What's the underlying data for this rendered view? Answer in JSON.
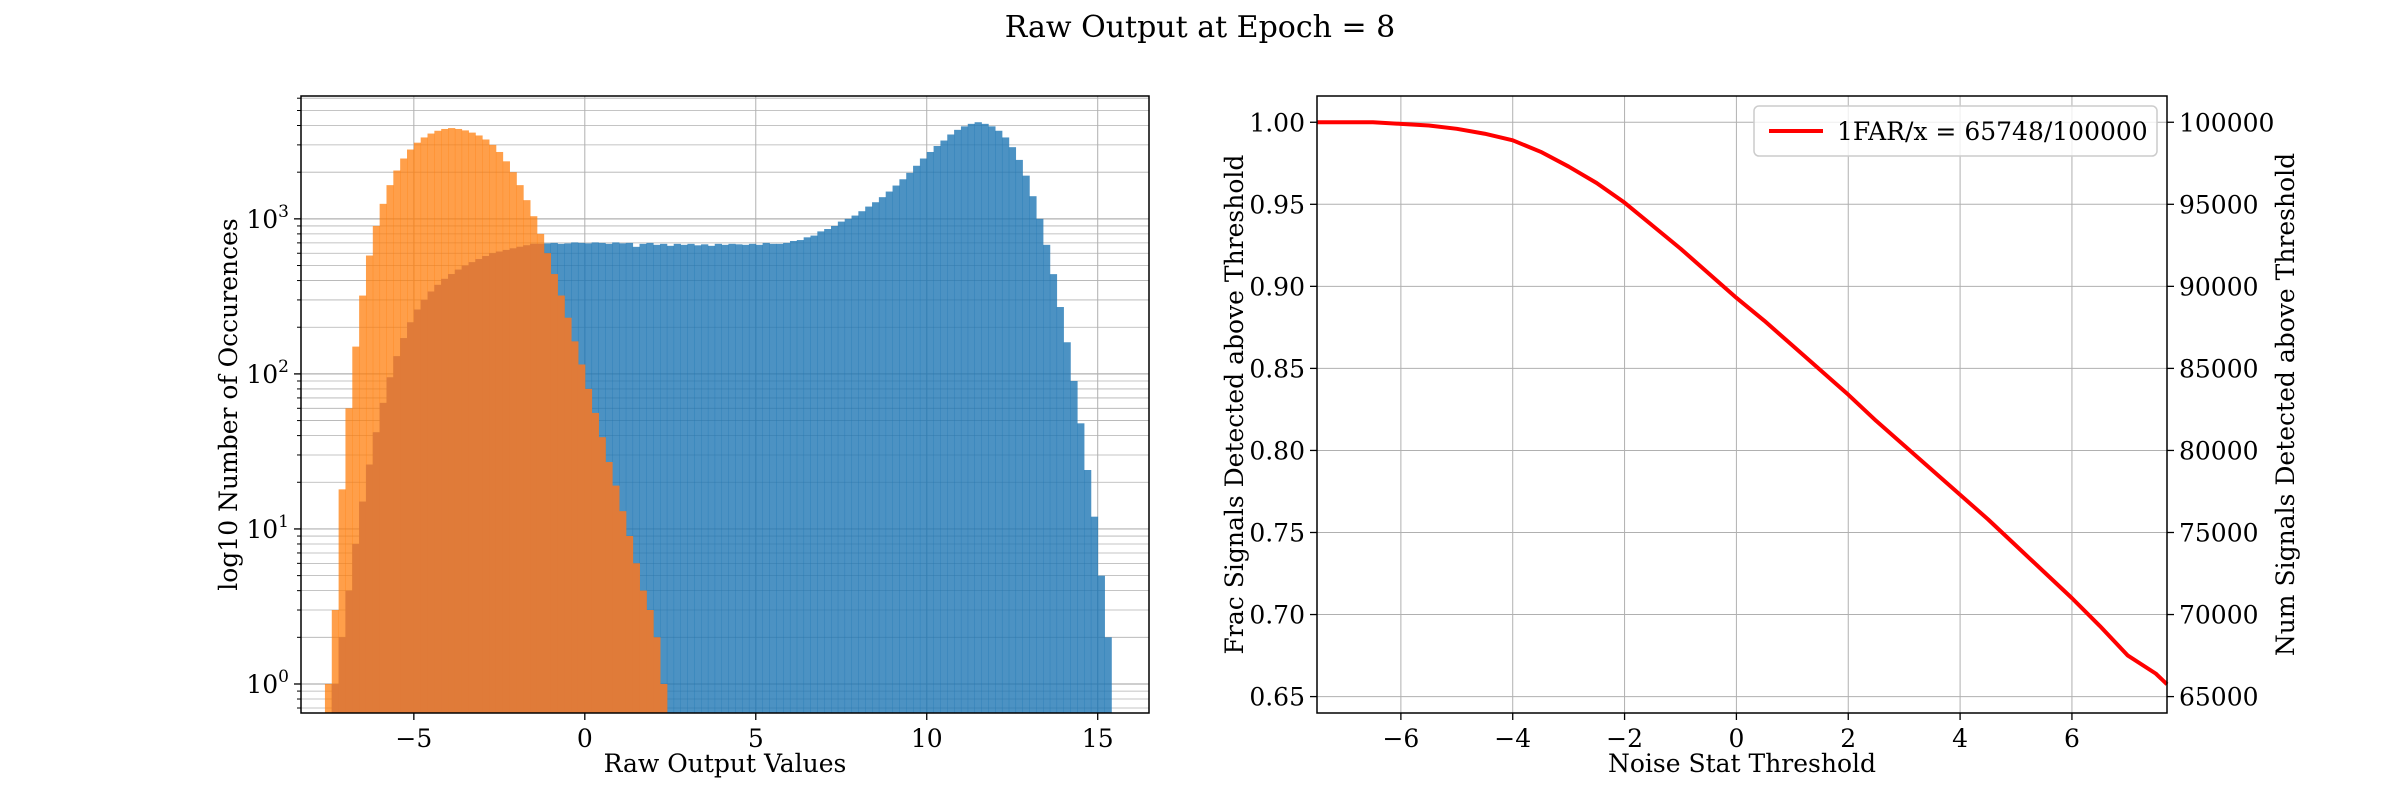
{
  "figure": {
    "suptitle": "Raw Output at Epoch = 8"
  },
  "chart_data": [
    {
      "type": "histogram",
      "yscale": "log",
      "xlabel": "Raw Output Values",
      "ylabel": "log10 Number of Occurences",
      "xlim": [
        -8.3,
        16.5
      ],
      "ylim": [
        0.65,
        6200
      ],
      "grid": true,
      "x_ticks": [
        -5,
        0,
        5,
        10,
        15
      ],
      "x_tick_labels": [
        "−5",
        "0",
        "5",
        "10",
        "15"
      ],
      "y_ticks": [
        1,
        10,
        100,
        1000
      ],
      "y_tick_labels": [
        {
          "base": "10",
          "exp": "0"
        },
        {
          "base": "10",
          "exp": "1"
        },
        {
          "base": "10",
          "exp": "2"
        },
        {
          "base": "10",
          "exp": "3"
        }
      ],
      "colors": {
        "signal": "#1f77b4",
        "noise": "#ff7f0e",
        "overlap": "#e07b39"
      },
      "series": [
        {
          "key": "signal",
          "color": "#1f77b4",
          "alpha": 0.8,
          "bins": [
            [
              -7.3,
              1
            ],
            [
              -7.1,
              2
            ],
            [
              -6.9,
              4
            ],
            [
              -6.7,
              8
            ],
            [
              -6.5,
              15
            ],
            [
              -6.3,
              26
            ],
            [
              -6.1,
              42
            ],
            [
              -5.9,
              65
            ],
            [
              -5.7,
              95
            ],
            [
              -5.5,
              130
            ],
            [
              -5.3,
              170
            ],
            [
              -5.1,
              215
            ],
            [
              -4.9,
              260
            ],
            [
              -4.7,
              300
            ],
            [
              -4.5,
              340
            ],
            [
              -4.3,
              375
            ],
            [
              -4.1,
              410
            ],
            [
              -3.9,
              440
            ],
            [
              -3.7,
              470
            ],
            [
              -3.5,
              500
            ],
            [
              -3.3,
              525
            ],
            [
              -3.1,
              550
            ],
            [
              -2.9,
              575
            ],
            [
              -2.7,
              600
            ],
            [
              -2.5,
              615
            ],
            [
              -2.3,
              630
            ],
            [
              -2.1,
              645
            ],
            [
              -1.9,
              660
            ],
            [
              -1.7,
              675
            ],
            [
              -1.5,
              690
            ],
            [
              -1.3,
              690
            ],
            [
              -1.1,
              695
            ],
            [
              -0.9,
              700
            ],
            [
              -0.7,
              690
            ],
            [
              -0.5,
              695
            ],
            [
              -0.3,
              705
            ],
            [
              -0.1,
              700
            ],
            [
              0.1,
              695
            ],
            [
              0.3,
              705
            ],
            [
              0.5,
              700
            ],
            [
              0.7,
              690
            ],
            [
              0.9,
              705
            ],
            [
              1.1,
              695
            ],
            [
              1.3,
              700
            ],
            [
              1.5,
              660
            ],
            [
              1.7,
              690
            ],
            [
              1.9,
              700
            ],
            [
              2.1,
              680
            ],
            [
              2.3,
              690
            ],
            [
              2.5,
              670
            ],
            [
              2.7,
              690
            ],
            [
              2.9,
              680
            ],
            [
              3.1,
              690
            ],
            [
              3.3,
              675
            ],
            [
              3.5,
              685
            ],
            [
              3.7,
              670
            ],
            [
              3.9,
              690
            ],
            [
              4.1,
              680
            ],
            [
              4.3,
              690
            ],
            [
              4.5,
              685
            ],
            [
              4.7,
              680
            ],
            [
              4.9,
              690
            ],
            [
              5.1,
              680
            ],
            [
              5.3,
              700
            ],
            [
              5.5,
              690
            ],
            [
              5.7,
              690
            ],
            [
              5.9,
              700
            ],
            [
              6.1,
              720
            ],
            [
              6.3,
              730
            ],
            [
              6.5,
              760
            ],
            [
              6.7,
              780
            ],
            [
              6.9,
              830
            ],
            [
              7.1,
              860
            ],
            [
              7.3,
              900
            ],
            [
              7.5,
              960
            ],
            [
              7.7,
              1000
            ],
            [
              7.9,
              1050
            ],
            [
              8.1,
              1120
            ],
            [
              8.3,
              1200
            ],
            [
              8.5,
              1280
            ],
            [
              8.7,
              1380
            ],
            [
              8.9,
              1500
            ],
            [
              9.1,
              1640
            ],
            [
              9.3,
              1800
            ],
            [
              9.5,
              1980
            ],
            [
              9.7,
              2200
            ],
            [
              9.9,
              2450
            ],
            [
              10.1,
              2700
            ],
            [
              10.3,
              2950
            ],
            [
              10.5,
              3200
            ],
            [
              10.7,
              3500
            ],
            [
              10.9,
              3750
            ],
            [
              11.1,
              3950
            ],
            [
              11.3,
              4100
            ],
            [
              11.5,
              4200
            ],
            [
              11.7,
              4100
            ],
            [
              11.9,
              3950
            ],
            [
              12.1,
              3700
            ],
            [
              12.3,
              3350
            ],
            [
              12.5,
              2900
            ],
            [
              12.7,
              2400
            ],
            [
              12.9,
              1900
            ],
            [
              13.1,
              1400
            ],
            [
              13.3,
              1000
            ],
            [
              13.5,
              680
            ],
            [
              13.7,
              440
            ],
            [
              13.9,
              270
            ],
            [
              14.1,
              160
            ],
            [
              14.3,
              90
            ],
            [
              14.5,
              48
            ],
            [
              14.7,
              24
            ],
            [
              14.9,
              12
            ],
            [
              15.1,
              5
            ],
            [
              15.3,
              2
            ]
          ]
        },
        {
          "key": "noise",
          "color": "#ff7f0e",
          "alpha": 0.75,
          "bins": [
            [
              -7.5,
              1
            ],
            [
              -7.3,
              3
            ],
            [
              -7.1,
              18
            ],
            [
              -6.9,
              60
            ],
            [
              -6.7,
              150
            ],
            [
              -6.5,
              320
            ],
            [
              -6.3,
              580
            ],
            [
              -6.1,
              900
            ],
            [
              -5.9,
              1250
            ],
            [
              -5.7,
              1650
            ],
            [
              -5.5,
              2050
            ],
            [
              -5.3,
              2450
            ],
            [
              -5.1,
              2800
            ],
            [
              -4.9,
              3100
            ],
            [
              -4.7,
              3350
            ],
            [
              -4.5,
              3550
            ],
            [
              -4.3,
              3700
            ],
            [
              -4.1,
              3800
            ],
            [
              -3.9,
              3850
            ],
            [
              -3.7,
              3800
            ],
            [
              -3.5,
              3720
            ],
            [
              -3.3,
              3600
            ],
            [
              -3.1,
              3450
            ],
            [
              -2.9,
              3250
            ],
            [
              -2.7,
              3000
            ],
            [
              -2.5,
              2700
            ],
            [
              -2.3,
              2350
            ],
            [
              -2.1,
              2000
            ],
            [
              -1.9,
              1650
            ],
            [
              -1.7,
              1320
            ],
            [
              -1.5,
              1040
            ],
            [
              -1.3,
              800
            ],
            [
              -1.1,
              600
            ],
            [
              -0.9,
              440
            ],
            [
              -0.7,
              320
            ],
            [
              -0.5,
              230
            ],
            [
              -0.3,
              162
            ],
            [
              -0.1,
              115
            ],
            [
              0.1,
              80
            ],
            [
              0.3,
              56
            ],
            [
              0.5,
              39
            ],
            [
              0.7,
              27
            ],
            [
              0.9,
              19
            ],
            [
              1.1,
              13
            ],
            [
              1.3,
              9
            ],
            [
              1.5,
              6
            ],
            [
              1.7,
              4
            ],
            [
              1.9,
              3
            ],
            [
              2.1,
              2
            ],
            [
              2.3,
              1
            ]
          ]
        },
        {
          "key": "overlap",
          "color": "#e07b39",
          "alpha": 1,
          "bins": [
            [
              -7.3,
              1
            ],
            [
              -7.1,
              2
            ],
            [
              -6.9,
              4
            ],
            [
              -6.7,
              8
            ],
            [
              -6.5,
              15
            ],
            [
              -6.3,
              26
            ],
            [
              -6.1,
              42
            ],
            [
              -5.9,
              65
            ],
            [
              -5.7,
              95
            ],
            [
              -5.5,
              130
            ],
            [
              -5.3,
              170
            ],
            [
              -5.1,
              215
            ],
            [
              -4.9,
              260
            ],
            [
              -4.7,
              300
            ],
            [
              -4.5,
              340
            ],
            [
              -4.3,
              375
            ],
            [
              -4.1,
              410
            ],
            [
              -3.9,
              440
            ],
            [
              -3.7,
              470
            ],
            [
              -3.5,
              500
            ],
            [
              -3.3,
              525
            ],
            [
              -3.1,
              550
            ],
            [
              -2.9,
              575
            ],
            [
              -2.7,
              600
            ],
            [
              -2.5,
              615
            ],
            [
              -2.3,
              630
            ],
            [
              -2.1,
              645
            ],
            [
              -1.9,
              660
            ],
            [
              -1.7,
              675
            ],
            [
              -1.5,
              690
            ],
            [
              -1.3,
              690
            ],
            [
              -1.1,
              600
            ],
            [
              -0.9,
              440
            ],
            [
              -0.7,
              320
            ],
            [
              -0.5,
              230
            ],
            [
              -0.3,
              162
            ],
            [
              -0.1,
              115
            ],
            [
              0.1,
              80
            ],
            [
              0.3,
              56
            ],
            [
              0.5,
              39
            ],
            [
              0.7,
              27
            ],
            [
              0.9,
              19
            ],
            [
              1.1,
              13
            ],
            [
              1.3,
              9
            ],
            [
              1.5,
              6
            ],
            [
              1.7,
              4
            ],
            [
              1.9,
              3
            ],
            [
              2.1,
              2
            ],
            [
              2.3,
              1
            ]
          ]
        }
      ]
    },
    {
      "type": "line",
      "xlabel": "Noise Stat Threshold",
      "ylabel": "Frac Signals Detected above Threshold",
      "ylabel_right": "Num Signals Detected above Threshold",
      "xlim": [
        -7.5,
        7.7
      ],
      "ylim": [
        0.64,
        1.016
      ],
      "ylim_right": [
        64000,
        101600
      ],
      "grid": true,
      "x_ticks": [
        -6,
        -4,
        -2,
        0,
        2,
        4,
        6
      ],
      "x_tick_labels": [
        "−6",
        "−4",
        "−2",
        "0",
        "2",
        "4",
        "6"
      ],
      "y_ticks": [
        0.65,
        0.7,
        0.75,
        0.8,
        0.85,
        0.9,
        0.95,
        1.0
      ],
      "y_tick_labels": [
        "0.65",
        "0.70",
        "0.75",
        "0.80",
        "0.85",
        "0.90",
        "0.95",
        "1.00"
      ],
      "y_ticks_right": [
        65000,
        70000,
        75000,
        80000,
        85000,
        90000,
        95000,
        100000
      ],
      "y_tick_labels_right": [
        "65000",
        "70000",
        "75000",
        "80000",
        "85000",
        "90000",
        "95000",
        "100000"
      ],
      "legend_position": "top-right",
      "series": [
        {
          "name": "1FAR/x = 65748/100000",
          "color": "#ff0000",
          "x": [
            -7.5,
            -7,
            -6.5,
            -6,
            -5.5,
            -5,
            -4.5,
            -4,
            -3.5,
            -3,
            -2.5,
            -2,
            -1.5,
            -1,
            -0.5,
            0,
            0.5,
            1,
            1.5,
            2,
            2.5,
            3,
            3.5,
            4,
            4.5,
            5,
            5.5,
            6,
            6.5,
            7,
            7.5,
            7.7
          ],
          "y": [
            1.0,
            1.0,
            1.0,
            0.999,
            0.998,
            0.996,
            0.993,
            0.989,
            0.982,
            0.973,
            0.963,
            0.951,
            0.937,
            0.923,
            0.908,
            0.893,
            0.879,
            0.864,
            0.849,
            0.834,
            0.818,
            0.803,
            0.788,
            0.773,
            0.758,
            0.742,
            0.726,
            0.71,
            0.693,
            0.675,
            0.664,
            0.65748
          ]
        }
      ]
    }
  ]
}
